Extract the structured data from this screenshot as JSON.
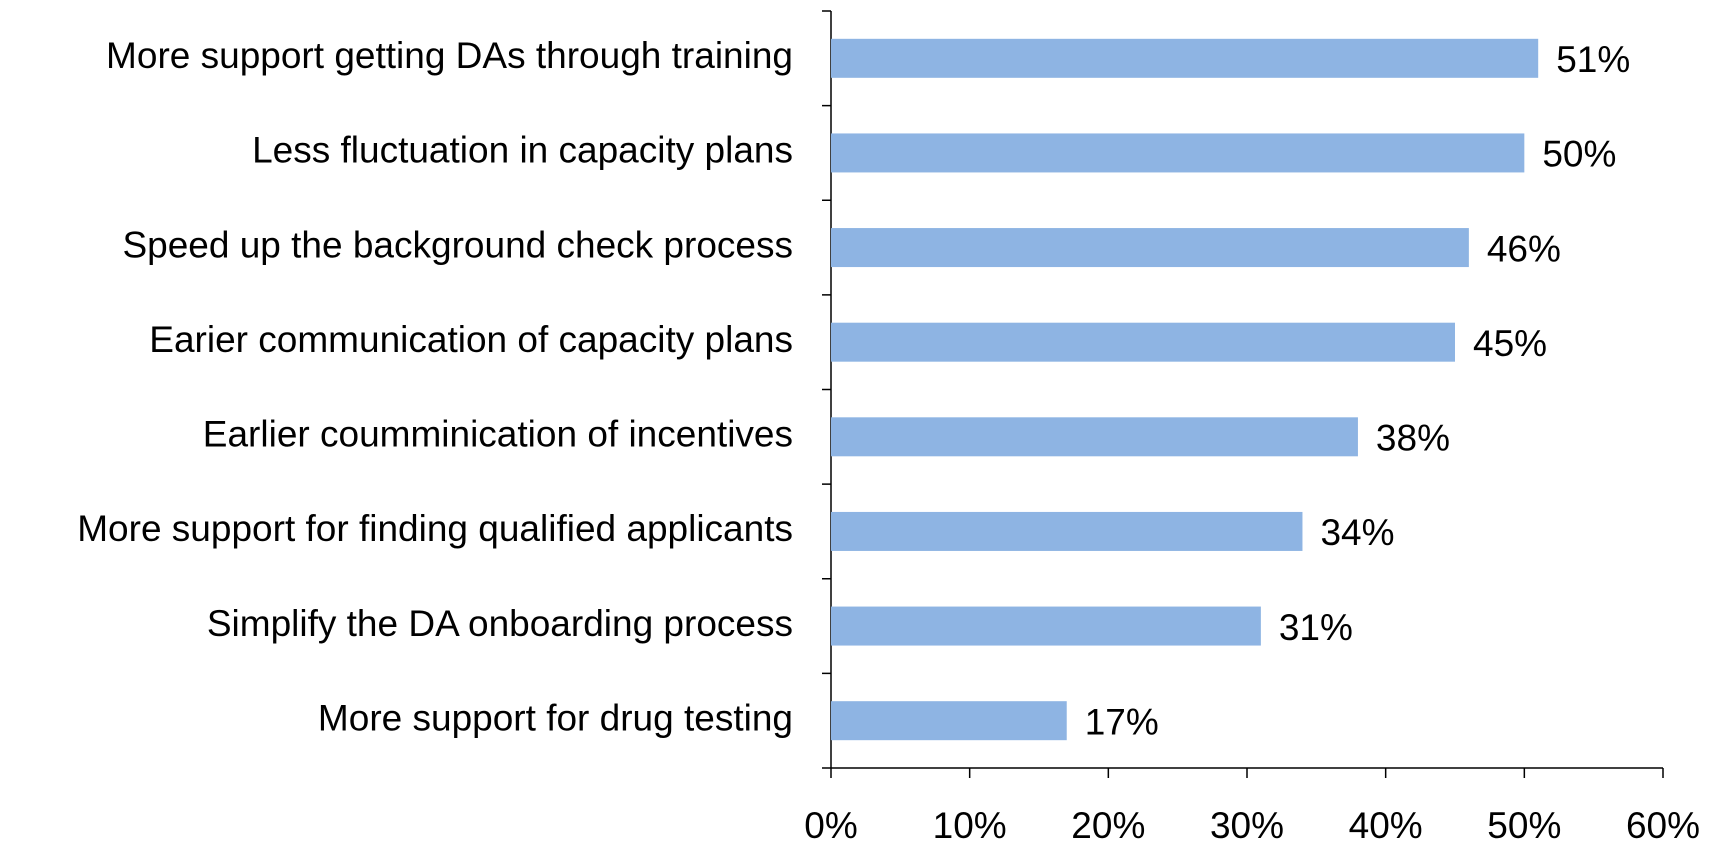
{
  "chart_data": {
    "type": "bar",
    "orientation": "horizontal",
    "categories": [
      "More support getting DAs through training",
      "Less fluctuation in capacity plans",
      "Speed up the background check process",
      "Earier communication of capacity plans",
      "Earlier coumminication of incentives",
      "More support for finding qualified applicants",
      "Simplify the DA onboarding process",
      "More support for drug testing"
    ],
    "values": [
      51,
      50,
      46,
      45,
      38,
      34,
      31,
      17
    ],
    "value_labels": [
      "51%",
      "50%",
      "46%",
      "45%",
      "38%",
      "34%",
      "31%",
      "17%"
    ],
    "color": "#8eb4e3",
    "xlim": [
      0,
      60
    ],
    "xticks": [
      {
        "value": 0,
        "label": "0%"
      },
      {
        "value": 10,
        "label": "10%"
      },
      {
        "value": 20,
        "label": "20%"
      },
      {
        "value": 30,
        "label": "30%"
      },
      {
        "value": 40,
        "label": "40%"
      },
      {
        "value": 50,
        "label": "50%"
      },
      {
        "value": 60,
        "label": "60%"
      }
    ],
    "grid": false
  }
}
